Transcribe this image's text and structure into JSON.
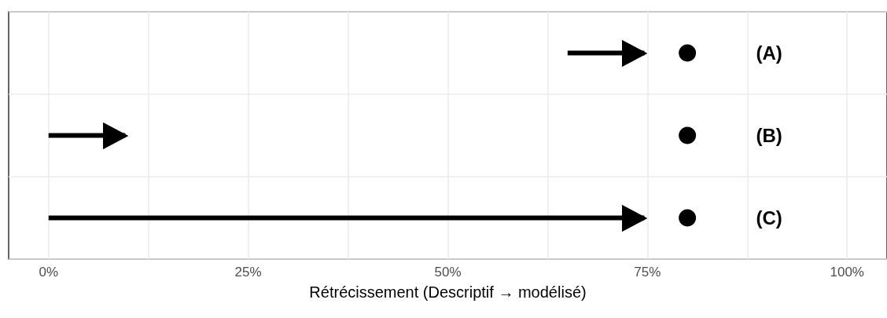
{
  "chart_data": {
    "type": "scatter",
    "orientation": "horizontal",
    "categories": [
      null,
      null,
      null
    ],
    "xlabel": "Rétrécissement (Descriptif → modélisé)",
    "xlim": [
      -5,
      105
    ],
    "xticks": [
      {
        "value": 0,
        "label": "0%"
      },
      {
        "value": 12.5,
        "label": null
      },
      {
        "value": 25,
        "label": "25%"
      },
      {
        "value": 37.5,
        "label": null
      },
      {
        "value": 50,
        "label": "50%"
      },
      {
        "value": 62.5,
        "label": null
      },
      {
        "value": 75,
        "label": "75%"
      },
      {
        "value": 87.5,
        "label": null
      },
      {
        "value": 100,
        "label": "100%"
      }
    ],
    "grid": true,
    "marker": "circle",
    "series": [
      {
        "type": "bar",
        "base": [
          65,
          0,
          0
        ],
        "values": [
          10,
          10,
          75
        ],
        "color": "#000000"
      },
      {
        "values": [
          80,
          80,
          80
        ],
        "color": "#000000"
      }
    ],
    "annotations": [
      "(A)",
      "(B)",
      "(C)"
    ]
  }
}
